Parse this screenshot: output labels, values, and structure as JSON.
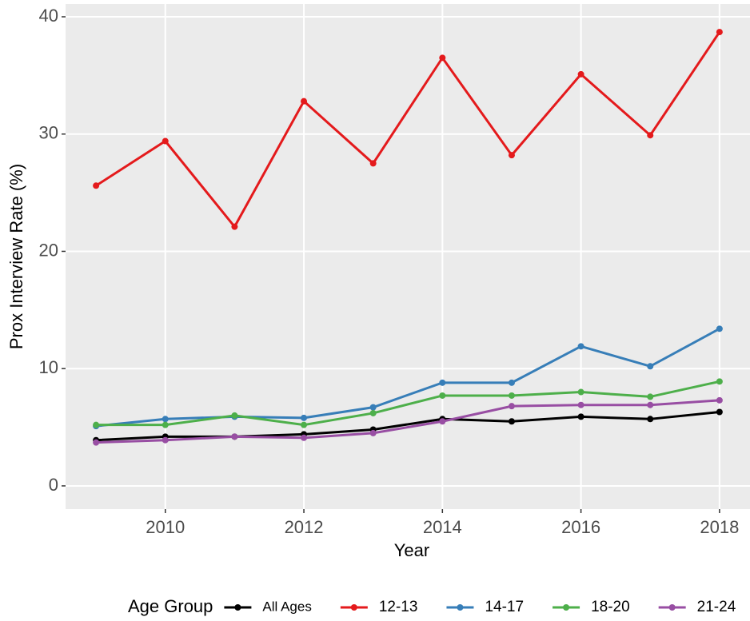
{
  "chart_data": {
    "type": "line",
    "x_label": "Year",
    "y_label": "Prox Interview Rate (%)",
    "x": [
      2009,
      2010,
      2011,
      2012,
      2013,
      2014,
      2015,
      2016,
      2017,
      2018
    ],
    "series": [
      {
        "name": "All Ages",
        "color": "#000000",
        "values": [
          3.9,
          4.2,
          4.2,
          4.4,
          4.8,
          5.7,
          5.5,
          5.9,
          5.7,
          6.3
        ]
      },
      {
        "name": "12-13",
        "color": "#e41a1c",
        "values": [
          25.6,
          29.4,
          22.1,
          32.8,
          27.5,
          36.5,
          28.2,
          35.1,
          29.9,
          38.7
        ]
      },
      {
        "name": "14-17",
        "color": "#377eb8",
        "values": [
          5.1,
          5.7,
          5.9,
          5.8,
          6.7,
          8.8,
          8.8,
          11.9,
          10.2,
          13.4
        ]
      },
      {
        "name": "18-20",
        "color": "#4daf4a",
        "values": [
          5.2,
          5.2,
          6.0,
          5.2,
          6.2,
          7.7,
          7.7,
          8.0,
          7.6,
          8.9
        ]
      },
      {
        "name": "21-24",
        "color": "#984ea3",
        "values": [
          3.7,
          3.9,
          4.2,
          4.1,
          4.5,
          5.5,
          6.8,
          6.9,
          6.9,
          7.3
        ]
      }
    ],
    "legend_title": "Age Group",
    "legend_position": "bottom",
    "xlim": [
      2008.56,
      2018.44
    ],
    "xticks": [
      2010,
      2012,
      2014,
      2016,
      2018
    ],
    "ylim": [
      -1.98,
      41.09
    ],
    "yticks": [
      0,
      10,
      20,
      30,
      40
    ],
    "grid": true
  }
}
